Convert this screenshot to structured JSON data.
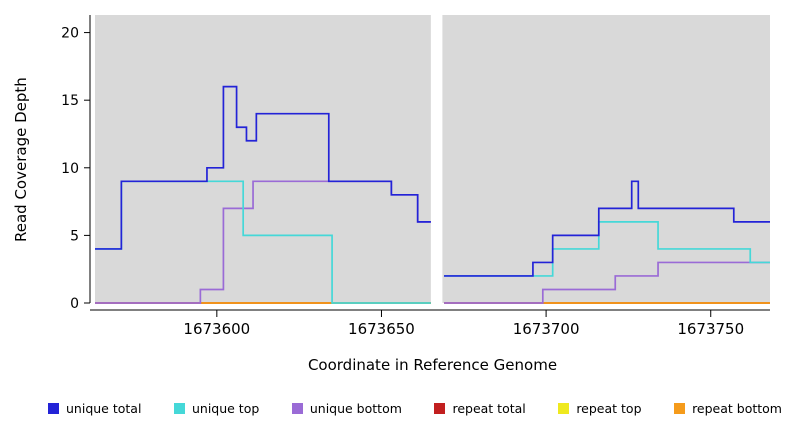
{
  "figure": {
    "background": "#ffffff",
    "plot_background": "#d9d9d9",
    "axis_color": "#000000",
    "text_color": "#000000"
  },
  "chart_data": {
    "type": "line",
    "subtype": "step-coverage",
    "title": "",
    "xlabel": "Coordinate in Reference Genome",
    "ylabel": "Read Coverage Depth",
    "xlim": [
      1673563,
      1673768
    ],
    "ylim": [
      0,
      21.3
    ],
    "x_ticks": [
      1673600,
      1673650,
      1673700,
      1673750
    ],
    "y_ticks": [
      0,
      5,
      10,
      15,
      20
    ],
    "grid": false,
    "legend_position": "bottom",
    "gap_region": [
      1673665,
      1673668.5
    ],
    "draw_order": [
      "repeat top",
      "repeat total",
      "repeat bottom",
      "unique bottom",
      "unique top",
      "unique total"
    ],
    "series": [
      {
        "name": "unique total",
        "color": "#2323d7",
        "segments": [
          [
            [
              1673563,
              4
            ],
            [
              1673571,
              9
            ],
            [
              1673597,
              10
            ],
            [
              1673602,
              16
            ],
            [
              1673606,
              13
            ],
            [
              1673609,
              12
            ],
            [
              1673612,
              14
            ],
            [
              1673634,
              9
            ],
            [
              1673653,
              8
            ],
            [
              1673661,
              6
            ],
            [
              1673665,
              6
            ]
          ],
          [
            [
              1673669,
              2
            ],
            [
              1673696,
              3
            ],
            [
              1673702,
              5
            ],
            [
              1673716,
              7
            ],
            [
              1673726,
              9
            ],
            [
              1673728,
              7
            ],
            [
              1673757,
              6
            ],
            [
              1673768,
              6
            ]
          ]
        ]
      },
      {
        "name": "unique top",
        "color": "#45d8d8",
        "segments": [
          [
            [
              1673563,
              4
            ],
            [
              1673571,
              9
            ],
            [
              1673608,
              5
            ],
            [
              1673635,
              0
            ],
            [
              1673665,
              0
            ]
          ],
          [
            [
              1673669,
              2
            ],
            [
              1673702,
              4
            ],
            [
              1673716,
              6
            ],
            [
              1673734,
              4
            ],
            [
              1673762,
              3
            ],
            [
              1673768,
              3
            ]
          ]
        ]
      },
      {
        "name": "unique bottom",
        "color": "#9a6bd6",
        "segments": [
          [
            [
              1673563,
              0
            ],
            [
              1673595,
              1
            ],
            [
              1673602,
              7
            ],
            [
              1673611,
              9
            ],
            [
              1673653,
              8
            ],
            [
              1673661,
              6
            ],
            [
              1673665,
              6
            ]
          ],
          [
            [
              1673669,
              0
            ],
            [
              1673699,
              1
            ],
            [
              1673721,
              2
            ],
            [
              1673734,
              3
            ],
            [
              1673768,
              3
            ]
          ]
        ]
      },
      {
        "name": "repeat total",
        "color": "#c21f1f",
        "segments": [
          [
            [
              1673563,
              0
            ],
            [
              1673665,
              0
            ]
          ],
          [
            [
              1673669,
              0
            ],
            [
              1673768,
              0
            ]
          ]
        ]
      },
      {
        "name": "repeat top",
        "color": "#efe91f",
        "segments": [
          [
            [
              1673563,
              0
            ],
            [
              1673665,
              0
            ]
          ],
          [
            [
              1673669,
              0
            ],
            [
              1673768,
              0
            ]
          ]
        ]
      },
      {
        "name": "repeat bottom",
        "color": "#f59b1b",
        "segments": [
          [
            [
              1673563,
              0
            ],
            [
              1673665,
              0
            ]
          ],
          [
            [
              1673669,
              0
            ],
            [
              1673768,
              0
            ]
          ]
        ]
      }
    ]
  },
  "legend": {
    "items": [
      {
        "label": "unique total",
        "color": "#2323d7"
      },
      {
        "label": "unique top",
        "color": "#45d8d8"
      },
      {
        "label": "unique bottom",
        "color": "#9a6bd6"
      },
      {
        "label": "repeat total",
        "color": "#c21f1f"
      },
      {
        "label": "repeat top",
        "color": "#efe91f"
      },
      {
        "label": "repeat bottom",
        "color": "#f59b1b"
      }
    ]
  }
}
